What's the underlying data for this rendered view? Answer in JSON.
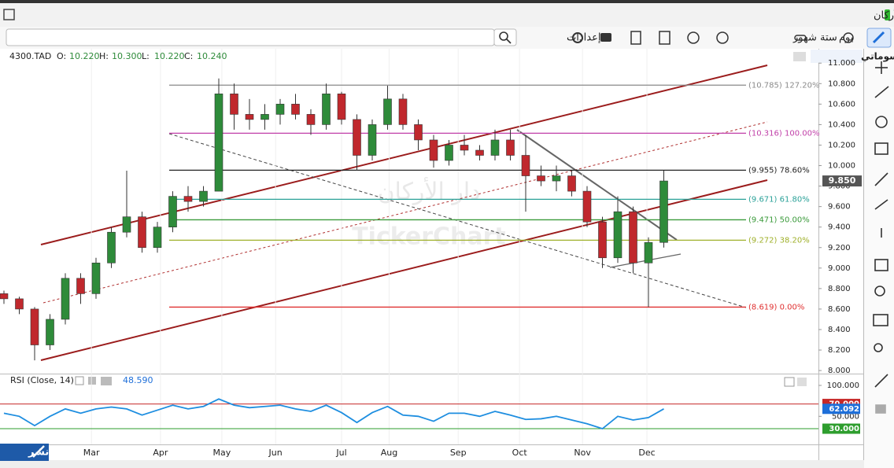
{
  "header": {
    "title": "دار الأركان"
  },
  "toolbar": {
    "period": "يوم",
    "range": "ستة شهور",
    "settings": "إعدادات"
  },
  "drawings_tab": "رسوماتي",
  "publish": "نشر",
  "watermark": {
    "arabic": "دار الأركان",
    "latin": "TickerChart"
  },
  "chart_data": [
    {
      "type": "candlestick",
      "symbol": "4300.TAD",
      "ohlc_labels": [
        "O:",
        "H:",
        "L:",
        "C:"
      ],
      "ohlc_values": [
        "10.220",
        "10.300",
        "10.220",
        "10.240"
      ],
      "open": [
        8.75,
        8.7,
        8.6,
        8.25,
        8.5,
        8.9,
        8.75,
        9.05,
        9.35,
        9.5,
        9.2,
        9.4,
        9.7,
        9.65,
        9.75,
        10.7,
        10.5,
        10.45,
        10.5,
        10.6,
        10.5,
        10.4,
        10.7,
        10.45,
        10.1,
        10.4,
        10.65,
        10.4,
        10.25,
        10.05,
        10.2,
        10.15,
        10.1,
        10.25,
        10.1,
        9.9,
        9.85,
        9.9,
        9.75,
        9.45,
        9.1,
        9.55,
        9.05,
        9.25
      ],
      "high": [
        8.78,
        8.72,
        8.62,
        8.55,
        8.95,
        8.95,
        9.1,
        9.4,
        9.95,
        9.55,
        9.45,
        9.75,
        9.8,
        9.8,
        10.85,
        10.8,
        10.65,
        10.6,
        10.65,
        10.7,
        10.55,
        10.8,
        10.72,
        10.5,
        10.45,
        10.78,
        10.7,
        10.45,
        10.3,
        10.25,
        10.3,
        10.2,
        10.35,
        10.35,
        10.3,
        10.0,
        10.0,
        9.95,
        9.8,
        9.5,
        9.7,
        9.6,
        9.3,
        9.95
      ],
      "low": [
        8.65,
        8.55,
        8.1,
        8.2,
        8.45,
        8.65,
        8.7,
        9.0,
        9.3,
        9.15,
        9.15,
        9.35,
        9.55,
        9.6,
        9.75,
        10.35,
        10.35,
        10.35,
        10.4,
        10.45,
        10.3,
        10.35,
        10.4,
        9.95,
        10.05,
        10.35,
        10.35,
        10.15,
        9.98,
        10.0,
        10.1,
        10.05,
        10.05,
        10.05,
        9.55,
        9.8,
        9.75,
        9.7,
        9.4,
        9.0,
        9.05,
        8.95,
        8.62,
        9.2
      ],
      "close": [
        8.7,
        8.6,
        8.25,
        8.5,
        8.9,
        8.75,
        9.05,
        9.35,
        9.5,
        9.2,
        9.4,
        9.7,
        9.65,
        9.75,
        10.7,
        10.5,
        10.45,
        10.5,
        10.6,
        10.5,
        10.4,
        10.7,
        10.45,
        10.1,
        10.4,
        10.65,
        10.4,
        10.25,
        10.05,
        10.2,
        10.15,
        10.1,
        10.25,
        10.1,
        9.9,
        9.85,
        9.9,
        9.75,
        9.45,
        9.1,
        9.55,
        9.05,
        9.25,
        9.85
      ],
      "up_color": "#2e8b3a",
      "down_color": "#c0282d",
      "xlim": [
        0,
        53
      ],
      "xticks": [
        {
          "value": 5.7,
          "label": "Mar"
        },
        {
          "value": 10.2,
          "label": "Apr"
        },
        {
          "value": 14.2,
          "label": "May"
        },
        {
          "value": 17.7,
          "label": "Jun"
        },
        {
          "value": 22.0,
          "label": "Jul"
        },
        {
          "value": 25.1,
          "label": "Aug"
        },
        {
          "value": 29.6,
          "label": "Sep"
        },
        {
          "value": 33.6,
          "label": "Oct"
        },
        {
          "value": 37.7,
          "label": "Nov"
        },
        {
          "value": 41.9,
          "label": "Dec"
        }
      ],
      "ylim": [
        7.97,
        11.14
      ],
      "yticks": [
        {
          "value": 8,
          "label": "8.000"
        },
        {
          "value": 8.2,
          "label": "8.200"
        },
        {
          "value": 8.4,
          "label": "8.400"
        },
        {
          "value": 8.6,
          "label": "8.600"
        },
        {
          "value": 8.8,
          "label": "8.800"
        },
        {
          "value": 9,
          "label": "9.000"
        },
        {
          "value": 9.2,
          "label": "9.200"
        },
        {
          "value": 9.4,
          "label": "9.400"
        },
        {
          "value": 9.6,
          "label": "9.600"
        },
        {
          "value": 9.8,
          "label": "9.800"
        },
        {
          "value": 10,
          "label": "10.000"
        },
        {
          "value": 10.2,
          "label": "10.200"
        },
        {
          "value": 10.4,
          "label": "10.400"
        },
        {
          "value": 10.6,
          "label": "10.600"
        },
        {
          "value": 10.8,
          "label": "10.800"
        },
        {
          "value": 11,
          "label": "11.000"
        }
      ],
      "levels": [
        {
          "value": 10.785,
          "label": "(10.785) 127.20%",
          "color": "#8a8a8a"
        },
        {
          "value": 10.316,
          "label": "(10.316) 100.00%",
          "color": "#c03fa8"
        },
        {
          "value": 9.955,
          "label": "(9.955) 78.60%",
          "color": "#222222"
        },
        {
          "value": 9.671,
          "label": "(9.671) 61.80%",
          "color": "#2aa198"
        },
        {
          "value": 9.471,
          "label": "(9.471) 50.00%",
          "color": "#3a9a3a"
        },
        {
          "value": 9.272,
          "label": "(9.272) 38.20%",
          "color": "#9fb02a"
        },
        {
          "value": 8.619,
          "label": "(8.619) 0.00%",
          "color": "#e03030"
        }
      ],
      "last_price": {
        "value": 9.85,
        "label": "9.850"
      }
    },
    {
      "type": "line",
      "name": "RSI (Close, 14)",
      "legend_value": "48.590",
      "color": "#1e8ee0",
      "values": [
        55,
        50,
        35,
        50,
        62,
        55,
        62,
        65,
        62,
        52,
        60,
        68,
        62,
        66,
        78,
        68,
        64,
        66,
        68,
        62,
        58,
        68,
        56,
        40,
        56,
        66,
        52,
        50,
        42,
        55,
        55,
        50,
        58,
        52,
        45,
        46,
        50,
        44,
        38,
        30,
        50,
        44,
        48,
        62.092
      ],
      "ylim": [
        4.6,
        116.5
      ],
      "yticks": [
        {
          "value": 100,
          "label": "100.000"
        },
        {
          "value": 50,
          "label": "50.000"
        }
      ],
      "levels": [
        {
          "value": 70,
          "label": "70.000",
          "color": "#c62828"
        },
        {
          "value": 30,
          "label": "30.000",
          "color": "#2e9e2e"
        }
      ],
      "last_value": {
        "value": 62.092,
        "label": "62.092",
        "color": "#1e6fd9"
      }
    }
  ]
}
